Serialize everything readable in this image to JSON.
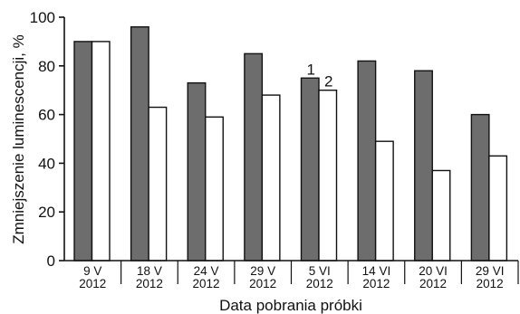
{
  "chart_data": {
    "type": "bar",
    "categories": [
      [
        "9 V",
        "2012"
      ],
      [
        "18 V",
        "2012"
      ],
      [
        "24 V",
        "2012"
      ],
      [
        "29 V",
        "2012"
      ],
      [
        "5 VI",
        "2012"
      ],
      [
        "14 VI",
        "2012"
      ],
      [
        "20 VI",
        "2012"
      ],
      [
        "29 VI",
        "2012"
      ]
    ],
    "series": [
      {
        "values": [
          90,
          96,
          73,
          85,
          75,
          82,
          78,
          60
        ],
        "color": "#6d6d6d",
        "marker_label": "1"
      },
      {
        "values": [
          90,
          63,
          59,
          68,
          70,
          49,
          37,
          43
        ],
        "color": "#ffffff",
        "marker_label": "2"
      }
    ],
    "series_marker_category_index": 4,
    "xlabel": "Data pobrania próbki",
    "ylabel": "Zmniejszenie luminescencji, %",
    "ylim": [
      0,
      100
    ],
    "yticks": [
      0,
      20,
      40,
      60,
      80,
      100
    ],
    "grid": false
  }
}
